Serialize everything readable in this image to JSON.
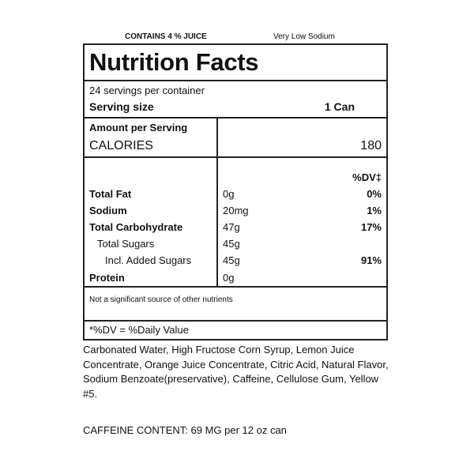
{
  "header": {
    "juice": "CONTAINS 4 % JUICE",
    "sodium_claim": "Very Low Sodium"
  },
  "label": {
    "title": "Nutrition Facts",
    "servings_per_container": "24 servings per container",
    "serving_size_label": "Serving size",
    "serving_size_value": "1 Can",
    "amount_per_serving": "Amount per Serving",
    "calories_label": "CALORIES",
    "calories_value": "180",
    "dv_header": "%DV‡",
    "nutrients": [
      {
        "name": "Total Fat",
        "amount": "0g",
        "dv": "0%"
      },
      {
        "name": "Sodium",
        "amount": "20mg",
        "dv": "1%"
      },
      {
        "name": "Total Carbohydrate",
        "amount": "47g",
        "dv": "17%"
      },
      {
        "name": "Total Sugars",
        "amount": "45g",
        "dv": ""
      },
      {
        "name": "Incl. Added Sugars",
        "amount": "45g",
        "dv": "91%"
      },
      {
        "name": "Protein",
        "amount": "0g",
        "dv": ""
      }
    ],
    "not_significant": "Not a significant source of other nutrients",
    "dv_footnote": "*%DV = %Daily Value"
  },
  "ingredients": "Carbonated Water, High Fructose Corn Syrup, Lemon Juice Concentrate, Orange Juice Concentrate, Citric Acid, Natural Flavor, Sodium Benzoate(preservative), Caffeine, Cellulose Gum, Yellow #5.",
  "caffeine": "CAFFEINE CONTENT: 69 MG per 12 oz can"
}
